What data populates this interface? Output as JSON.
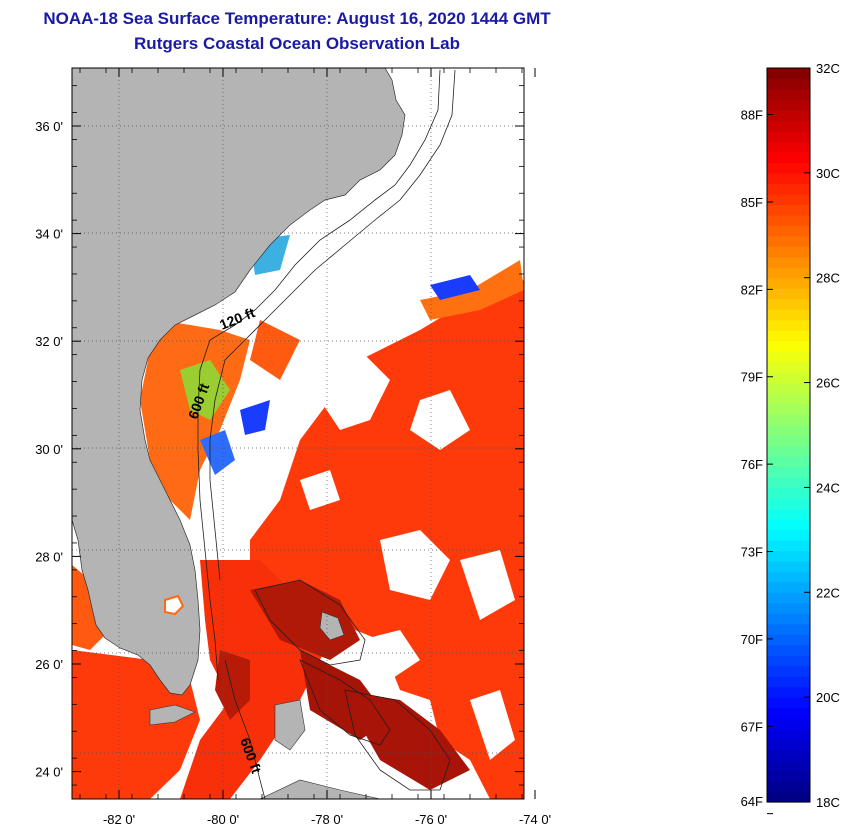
{
  "title_line1": "NOAA-18 Sea Surface Temperature:  August 16, 2020 1444 GMT",
  "title_line2": "Rutgers Coastal Ocean Observation Lab",
  "lat_labels": [
    "36 0'",
    "34 0'",
    "32 0'",
    "30 0'",
    "28 0'",
    "26 0'",
    "24 0'"
  ],
  "lat_values": [
    36,
    34,
    32,
    30,
    28,
    26,
    24
  ],
  "lon_labels": [
    "-82 0'",
    "-80 0'",
    "-78 0'",
    "-76 0'",
    "-74 0'"
  ],
  "lon_values": [
    -82,
    -80,
    -78,
    -76,
    -74
  ],
  "contour_labels": [
    "120 ft",
    "600 ft",
    "600 ft"
  ],
  "colorbar": {
    "celsius": [
      "32C",
      "30C",
      "28C",
      "26C",
      "24C",
      "22C",
      "20C",
      "18C"
    ],
    "fahrenheit": [
      "88F",
      "85F",
      "82F",
      "79F",
      "76F",
      "73F",
      "70F",
      "67F",
      "64F"
    ],
    "min_c": 18,
    "max_c": 32,
    "colors": [
      "#00007f",
      "#0000ff",
      "#007fff",
      "#00ffff",
      "#7fff7f",
      "#ffff00",
      "#ff7f00",
      "#ff0000",
      "#7f0000"
    ]
  },
  "colors": {
    "land": "#b4b4b4",
    "no_data": "#ffffff",
    "warm_water": "#ff3a0a",
    "title": "#1a1aa6"
  }
}
